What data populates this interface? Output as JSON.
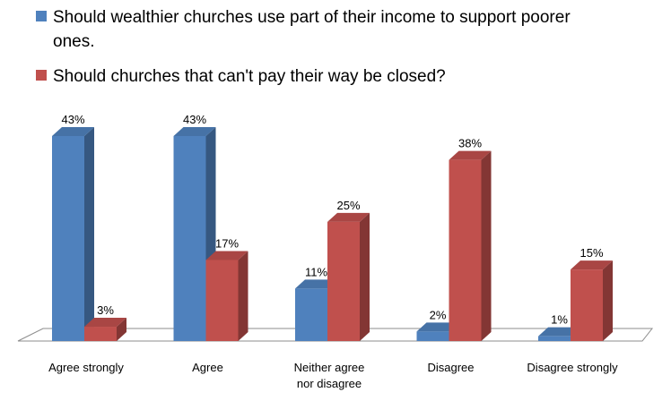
{
  "chart_data": {
    "type": "bar",
    "style": "3d-clustered-column",
    "categories": [
      [
        "Agree strongly"
      ],
      [
        "Agree"
      ],
      [
        "Neither agree",
        "nor disagree"
      ],
      [
        "Disagree"
      ],
      [
        "Disagree strongly"
      ]
    ],
    "series": [
      {
        "name": "Should wealthier churches use part of their income to support poorer ones.",
        "legend_lines": [
          "Should wealthier churches use part of their income to support poorer",
          "ones."
        ],
        "values": [
          43,
          43,
          11,
          2,
          1
        ],
        "labels": [
          "43%",
          "43%",
          "11%",
          "2%",
          "1%"
        ],
        "color": "#4f81bd"
      },
      {
        "name": "Should churches that can't pay their way be closed?",
        "legend_lines": [
          "Should churches that can't pay their way be closed?"
        ],
        "values": [
          3,
          17,
          25,
          38,
          15
        ],
        "labels": [
          "3%",
          "17%",
          "25%",
          "38%",
          "15%"
        ],
        "color": "#c0504d"
      }
    ],
    "ylim": [
      0,
      43
    ],
    "grid": false,
    "legend_position": "top-left",
    "title": "",
    "xlabel": "",
    "ylabel": ""
  }
}
